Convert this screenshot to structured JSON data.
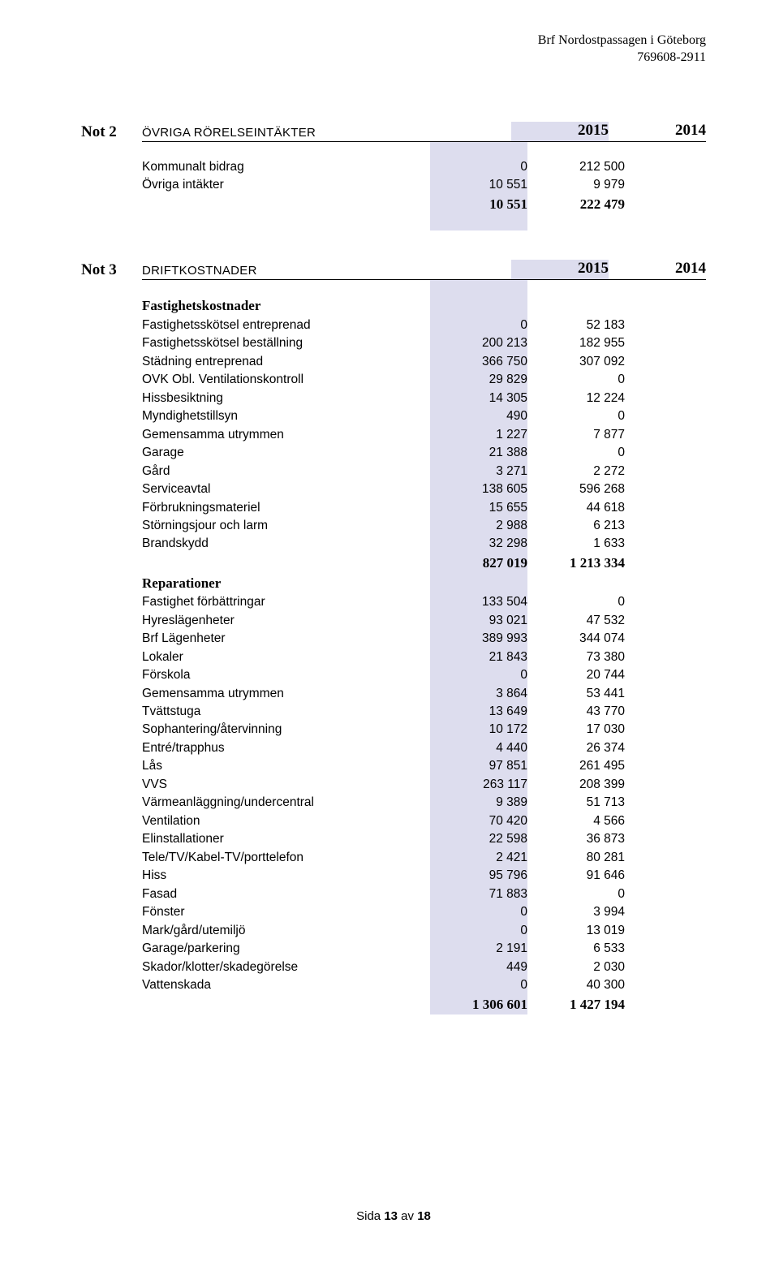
{
  "header": {
    "org_name": "Brf Nordostpassagen i Göteborg",
    "org_number": "769608-2911"
  },
  "note2": {
    "note_label": "Not 2",
    "title": "ÖVRIGA RÖRELSEINTÄKTER",
    "col1": "2015",
    "col2": "2014",
    "rows": [
      {
        "label": "Kommunalt bidrag",
        "v1": "0",
        "v2": "212 500"
      },
      {
        "label": "Övriga intäkter",
        "v1": "10 551",
        "v2": "9 979"
      }
    ],
    "total": {
      "v1": "10 551",
      "v2": "222 479"
    }
  },
  "note3": {
    "note_label": "Not 3",
    "title": "DRIFTKOSTNADER",
    "col1": "2015",
    "col2": "2014",
    "section1": {
      "heading": "Fastighetskostnader",
      "rows": [
        {
          "label": "Fastighetsskötsel entreprenad",
          "v1": "0",
          "v2": "52 183"
        },
        {
          "label": "Fastighetsskötsel beställning",
          "v1": "200 213",
          "v2": "182 955"
        },
        {
          "label": "Städning entreprenad",
          "v1": "366 750",
          "v2": "307 092"
        },
        {
          "label": "OVK Obl. Ventilationskontroll",
          "v1": "29 829",
          "v2": "0"
        },
        {
          "label": "Hissbesiktning",
          "v1": "14 305",
          "v2": "12 224"
        },
        {
          "label": "Myndighetstillsyn",
          "v1": "490",
          "v2": "0"
        },
        {
          "label": "Gemensamma utrymmen",
          "v1": "1 227",
          "v2": "7 877"
        },
        {
          "label": "Garage",
          "v1": "21 388",
          "v2": "0"
        },
        {
          "label": "Gård",
          "v1": "3 271",
          "v2": "2 272"
        },
        {
          "label": "Serviceavtal",
          "v1": "138 605",
          "v2": "596 268"
        },
        {
          "label": "Förbrukningsmateriel",
          "v1": "15 655",
          "v2": "44 618"
        },
        {
          "label": "Störningsjour och larm",
          "v1": "2 988",
          "v2": "6 213"
        },
        {
          "label": "Brandskydd",
          "v1": "32 298",
          "v2": "1 633"
        }
      ],
      "total": {
        "v1": "827 019",
        "v2": "1 213 334"
      }
    },
    "section2": {
      "heading": "Reparationer",
      "rows": [
        {
          "label": "Fastighet förbättringar",
          "v1": "133 504",
          "v2": "0"
        },
        {
          "label": "Hyreslägenheter",
          "v1": "93 021",
          "v2": "47 532"
        },
        {
          "label": "Brf Lägenheter",
          "v1": "389 993",
          "v2": "344 074"
        },
        {
          "label": "Lokaler",
          "v1": "21 843",
          "v2": "73 380"
        },
        {
          "label": "Förskola",
          "v1": "0",
          "v2": "20 744"
        },
        {
          "label": "Gemensamma utrymmen",
          "v1": "3 864",
          "v2": "53 441"
        },
        {
          "label": "Tvättstuga",
          "v1": "13 649",
          "v2": "43 770"
        },
        {
          "label": "Sophantering/återvinning",
          "v1": "10 172",
          "v2": "17 030"
        },
        {
          "label": "Entré/trapphus",
          "v1": "4 440",
          "v2": "26 374"
        },
        {
          "label": "Lås",
          "v1": "97 851",
          "v2": "261 495"
        },
        {
          "label": "VVS",
          "v1": "263 117",
          "v2": "208 399"
        },
        {
          "label": "Värmeanläggning/undercentral",
          "v1": "9 389",
          "v2": "51 713"
        },
        {
          "label": "Ventilation",
          "v1": "70 420",
          "v2": "4 566"
        },
        {
          "label": "Elinstallationer",
          "v1": "22 598",
          "v2": "36 873"
        },
        {
          "label": "Tele/TV/Kabel-TV/porttelefon",
          "v1": "2 421",
          "v2": "80 281"
        },
        {
          "label": "Hiss",
          "v1": "95 796",
          "v2": "91 646"
        },
        {
          "label": "Fasad",
          "v1": "71 883",
          "v2": "0"
        },
        {
          "label": "Fönster",
          "v1": "0",
          "v2": "3 994"
        },
        {
          "label": "Mark/gård/utemiljö",
          "v1": "0",
          "v2": "13 019"
        },
        {
          "label": "Garage/parkering",
          "v1": "2 191",
          "v2": "6 533"
        },
        {
          "label": "Skador/klotter/skadegörelse",
          "v1": "449",
          "v2": "2 030"
        },
        {
          "label": "Vattenskada",
          "v1": "0",
          "v2": "40 300"
        }
      ],
      "total": {
        "v1": "1 306 601",
        "v2": "1 427 194"
      }
    }
  },
  "footer": {
    "prefix": "Sida ",
    "page": "13",
    "middle": " av ",
    "total": "18"
  }
}
